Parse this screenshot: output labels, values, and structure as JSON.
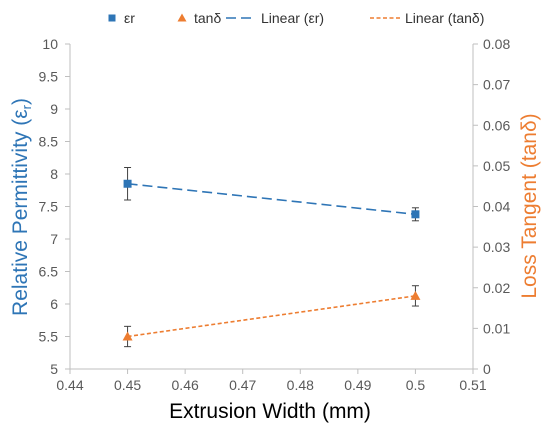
{
  "chart_data": {
    "type": "scatter",
    "xlabel": "Extrusion Width (mm)",
    "ylabel_left": "Relative Permittivity (ε",
    "ylabel_left_sub": "r",
    "ylabel_left_close": ")",
    "ylabel_right": "Loss Tangent (tanδ)",
    "xlim": [
      0.44,
      0.51
    ],
    "ylim_left": [
      5,
      10
    ],
    "ylim_right": [
      0,
      0.08
    ],
    "x_ticks": [
      "0.44",
      "0.45",
      "0.46",
      "0.47",
      "0.48",
      "0.49",
      "0.5",
      "0.51"
    ],
    "y_left_ticks": [
      "5",
      "5.5",
      "6",
      "6.5",
      "7",
      "7.5",
      "8",
      "8.5",
      "9",
      "9.5",
      "10"
    ],
    "y_right_ticks": [
      "0",
      "0.01",
      "0.02",
      "0.03",
      "0.04",
      "0.05",
      "0.06",
      "0.07",
      "0.08"
    ],
    "grid": false,
    "legend_position": "top",
    "series": [
      {
        "name": "εr",
        "axis": "left",
        "marker": "square",
        "color": "#2E75B6",
        "x": [
          0.45,
          0.5
        ],
        "y": [
          7.85,
          7.38
        ],
        "error": [
          0.25,
          0.1
        ]
      },
      {
        "name": "tanδ",
        "axis": "right",
        "marker": "triangle",
        "color": "#ED7D31",
        "x": [
          0.45,
          0.5
        ],
        "y": [
          0.008,
          0.018
        ],
        "error": [
          0.0025,
          0.0025
        ]
      }
    ],
    "trendlines": [
      {
        "name": "Linear (εr)",
        "of": 0,
        "color": "#2E75B6",
        "dash": "long"
      },
      {
        "name": "Linear (tanδ)",
        "of": 1,
        "color": "#ED7D31",
        "dash": "short"
      }
    ]
  }
}
